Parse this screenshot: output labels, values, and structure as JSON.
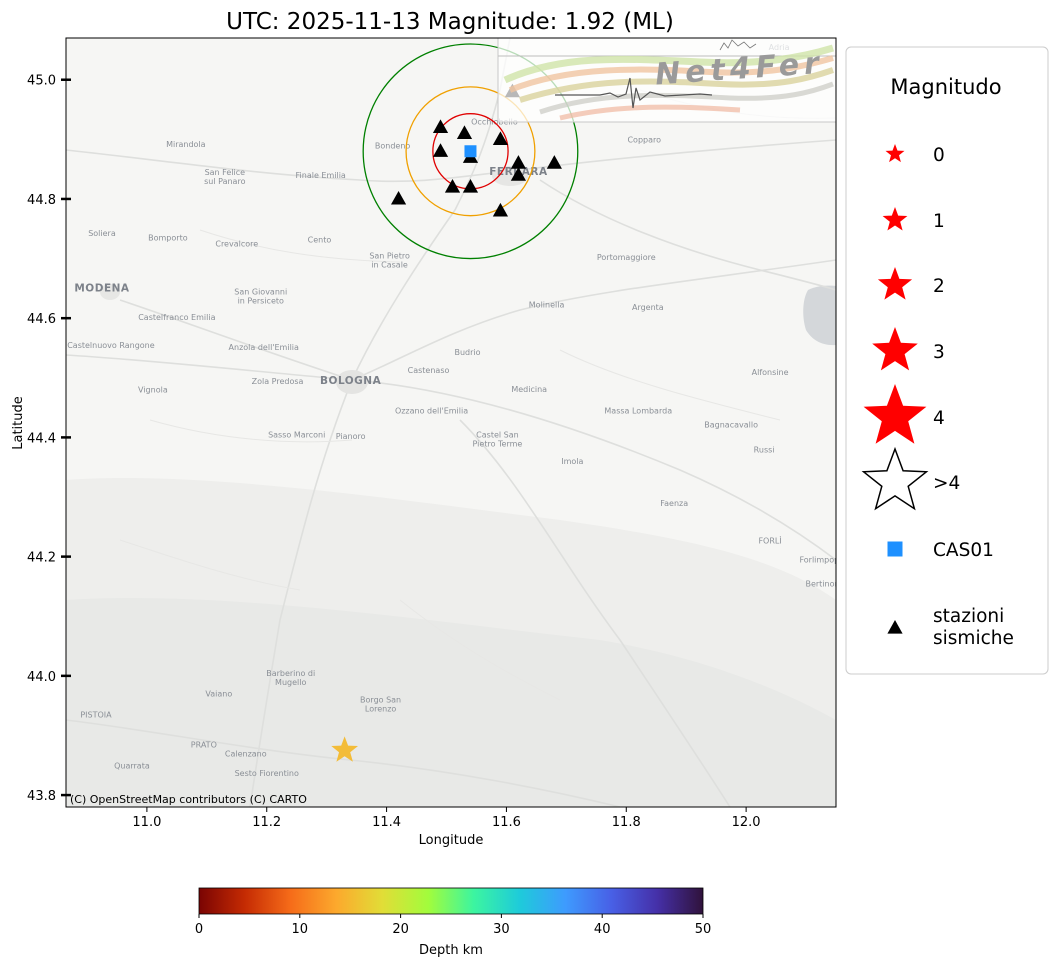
{
  "title": "UTC: 2025-11-13 Magnitude: 1.92 (ML)",
  "xlabel": "Longitude",
  "ylabel": "Latitude",
  "attribution": "(C) OpenStreetMap contributors (C) CARTO",
  "logo_text": "Net4Fer",
  "map": {
    "lon_range": [
      10.865,
      12.15
    ],
    "lat_range": [
      43.78,
      45.07
    ],
    "x_ticks": [
      "11.0",
      "11.2",
      "11.4",
      "11.6",
      "11.8",
      "12.0"
    ],
    "y_ticks": [
      "43.8",
      "44.0",
      "44.2",
      "44.4",
      "44.6",
      "44.8",
      "45.0"
    ],
    "place_labels": [
      {
        "text": "FERRARA",
        "lon": 11.62,
        "lat": 44.84,
        "big": true
      },
      {
        "text": "BOLOGNA",
        "lon": 11.34,
        "lat": 44.49,
        "big": true
      },
      {
        "text": "MODENA",
        "lon": 10.925,
        "lat": 44.645,
        "big": true
      },
      {
        "text": "Mirandola",
        "lon": 11.065,
        "lat": 44.887
      },
      {
        "text": "San Felice sul Panaro",
        "lon": 11.13,
        "lat": 44.84
      },
      {
        "text": "Finale Emilia",
        "lon": 11.29,
        "lat": 44.835
      },
      {
        "text": "Bondeno",
        "lon": 11.41,
        "lat": 44.885
      },
      {
        "text": "Occhiobello",
        "lon": 11.58,
        "lat": 44.925
      },
      {
        "text": "Copparo",
        "lon": 11.83,
        "lat": 44.895
      },
      {
        "text": "Soliera",
        "lon": 10.925,
        "lat": 44.738
      },
      {
        "text": "Bomporto",
        "lon": 11.035,
        "lat": 44.73
      },
      {
        "text": "Crevalcore",
        "lon": 11.15,
        "lat": 44.72
      },
      {
        "text": "Cento",
        "lon": 11.288,
        "lat": 44.727
      },
      {
        "text": "San Pietro in Casale",
        "lon": 11.405,
        "lat": 44.7
      },
      {
        "text": "Portomaggiore",
        "lon": 11.8,
        "lat": 44.698
      },
      {
        "text": "San Giovanni in Persiceto",
        "lon": 11.19,
        "lat": 44.64
      },
      {
        "text": "Molinella",
        "lon": 11.667,
        "lat": 44.618
      },
      {
        "text": "Argenta",
        "lon": 11.836,
        "lat": 44.614
      },
      {
        "text": "Castelfranco Emilia",
        "lon": 11.05,
        "lat": 44.597
      },
      {
        "text": "Castelnuovo Rangone",
        "lon": 10.94,
        "lat": 44.55
      },
      {
        "text": "Anzola dell'Emilia",
        "lon": 11.195,
        "lat": 44.547
      },
      {
        "text": "Budrio",
        "lon": 11.535,
        "lat": 44.538
      },
      {
        "text": "Castenaso",
        "lon": 11.47,
        "lat": 44.508
      },
      {
        "text": "Zola Predosa",
        "lon": 11.218,
        "lat": 44.49
      },
      {
        "text": "Vignola",
        "lon": 11.01,
        "lat": 44.475
      },
      {
        "text": "Medicina",
        "lon": 11.638,
        "lat": 44.476
      },
      {
        "text": "Alfonsine",
        "lon": 12.04,
        "lat": 44.505
      },
      {
        "text": "Ozzano dell'Emilia",
        "lon": 11.475,
        "lat": 44.44
      },
      {
        "text": "Massa Lombarda",
        "lon": 11.82,
        "lat": 44.44
      },
      {
        "text": "Bagnacavallo",
        "lon": 11.975,
        "lat": 44.417
      },
      {
        "text": "Sasso Marconi",
        "lon": 11.25,
        "lat": 44.4
      },
      {
        "text": "Pianoro",
        "lon": 11.34,
        "lat": 44.397
      },
      {
        "text": "Castel San Pietro Terme",
        "lon": 11.585,
        "lat": 44.4
      },
      {
        "text": "Russi",
        "lon": 12.03,
        "lat": 44.375
      },
      {
        "text": "Imola",
        "lon": 11.71,
        "lat": 44.355
      },
      {
        "text": "Faenza",
        "lon": 11.88,
        "lat": 44.285
      },
      {
        "text": "FORLÌ",
        "lon": 12.04,
        "lat": 44.222
      },
      {
        "text": "Forlimpopoli",
        "lon": 12.13,
        "lat": 44.19
      },
      {
        "text": "Bertinoro",
        "lon": 12.13,
        "lat": 44.15
      },
      {
        "text": "Barberino di Mugello",
        "lon": 11.24,
        "lat": 44.0
      },
      {
        "text": "Borgo San Lorenzo",
        "lon": 11.39,
        "lat": 43.955
      },
      {
        "text": "Vaiano",
        "lon": 11.12,
        "lat": 43.965
      },
      {
        "text": "PISTOIA",
        "lon": 10.915,
        "lat": 43.93
      },
      {
        "text": "PRATO",
        "lon": 11.095,
        "lat": 43.88
      },
      {
        "text": "Calenzano",
        "lon": 11.165,
        "lat": 43.865
      },
      {
        "text": "Quarrata",
        "lon": 10.975,
        "lat": 43.845
      },
      {
        "text": "Sesto Fiorentino",
        "lon": 11.2,
        "lat": 43.832
      },
      {
        "text": "Adria",
        "lon": 12.055,
        "lat": 45.05
      }
    ]
  },
  "chart_data": {
    "type": "scatter",
    "title": "UTC: 2025-11-13 Magnitude: 1.92 (ML)",
    "xlabel": "Longitude",
    "ylabel": "Latitude",
    "xlim": [
      10.865,
      12.15
    ],
    "ylim": [
      43.78,
      45.07
    ],
    "epicenter": {
      "lon": 11.33,
      "lat": 43.875,
      "magnitude": 1.92,
      "magnitude_type": "ML",
      "date": "2025-11-13",
      "depth_km": 14,
      "color": "#f3bc38"
    },
    "reference_station": {
      "name": "CAS01",
      "lon": 11.54,
      "lat": 44.88,
      "color": "#1e90ff"
    },
    "stations": [
      {
        "lon": 11.61,
        "lat": 44.98
      },
      {
        "lon": 11.49,
        "lat": 44.92
      },
      {
        "lon": 11.53,
        "lat": 44.91
      },
      {
        "lon": 11.59,
        "lat": 44.9
      },
      {
        "lon": 11.49,
        "lat": 44.88
      },
      {
        "lon": 11.54,
        "lat": 44.87
      },
      {
        "lon": 11.62,
        "lat": 44.86
      },
      {
        "lon": 11.68,
        "lat": 44.86
      },
      {
        "lon": 11.62,
        "lat": 44.84
      },
      {
        "lon": 11.51,
        "lat": 44.82
      },
      {
        "lon": 11.54,
        "lat": 44.82
      },
      {
        "lon": 11.42,
        "lat": 44.8
      },
      {
        "lon": 11.59,
        "lat": 44.78
      }
    ],
    "distance_circles": [
      {
        "center_lon": 11.54,
        "center_lat": 44.88,
        "radius_deg_lat": 0.063,
        "color": "#e00000"
      },
      {
        "center_lon": 11.54,
        "center_lat": 44.88,
        "radius_deg_lat": 0.108,
        "color": "#f0a000"
      },
      {
        "center_lon": 11.54,
        "center_lat": 44.88,
        "radius_deg_lat": 0.18,
        "color": "#008000"
      }
    ]
  },
  "legend": {
    "title": "Magnitudo",
    "items": [
      {
        "label": "0",
        "symbol": "star",
        "color": "#ff0000",
        "size": 1
      },
      {
        "label": "1",
        "symbol": "star",
        "color": "#ff0000",
        "size": 2
      },
      {
        "label": "2",
        "symbol": "star",
        "color": "#ff0000",
        "size": 3
      },
      {
        "label": "3",
        "symbol": "star",
        "color": "#ff0000",
        "size": 4
      },
      {
        "label": "4",
        "symbol": "star",
        "color": "#ff0000",
        "size": 5
      },
      {
        "label": ">4",
        "symbol": "star-outline",
        "color": "#000000",
        "size": 5
      },
      {
        "label": "CAS01",
        "symbol": "square",
        "color": "#1e90ff",
        "size": 1
      },
      {
        "label": "stazioni\nsismiche",
        "symbol": "triangle",
        "color": "#000000",
        "size": 1
      }
    ]
  },
  "colorbar": {
    "label": "Depth km",
    "range": [
      0,
      50
    ],
    "ticks": [
      "0",
      "10",
      "20",
      "30",
      "40",
      "50"
    ],
    "colormap": "turbo_r",
    "colors": [
      "#7a0403",
      "#c52b03",
      "#f66c19",
      "#fca92d",
      "#e1dd37",
      "#a2fc3c",
      "#3cf5a0",
      "#1ecbda",
      "#3e9bfe",
      "#4860e6",
      "#4530a8",
      "#30123b"
    ]
  }
}
